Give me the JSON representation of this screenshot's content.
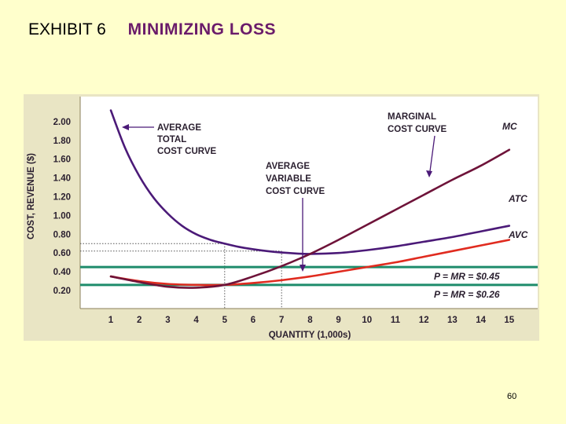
{
  "slide": {
    "exhibit_label": "EXHIBIT 6",
    "title": "MINIMIZING LOSS",
    "page_number": "60"
  },
  "colors": {
    "title": "#6a1b6a",
    "chart_background": "#e9e5c4",
    "curve_purple": "#4b1a78",
    "mc_line": "#6e1339",
    "avc_line": "#e02b1f",
    "price_lines": "#1e8c6b",
    "axis_text": "#2a1f2f"
  },
  "chart_data": {
    "type": "line",
    "xlabel": "QUANTITY (1,000s)",
    "ylabel": "COST, REVENUE ($)",
    "xlim": [
      0.5,
      15.5
    ],
    "ylim": [
      0,
      2.1
    ],
    "x_ticks": [
      "1",
      "2",
      "3",
      "4",
      "5",
      "6",
      "7",
      "8",
      "9",
      "10",
      "11",
      "12",
      "13",
      "14",
      "15"
    ],
    "y_ticks": [
      "2.00",
      "1.80",
      "1.60",
      "1.40",
      "1.20",
      "1.00",
      "0.80",
      "0.60",
      "0.40",
      "0.20"
    ],
    "grid": false,
    "series": [
      {
        "name": "ATC",
        "color": "#4b1a78",
        "x": [
          1,
          1.5,
          2,
          2.5,
          3,
          3.5,
          4,
          4.5,
          5,
          5.5,
          6,
          6.5,
          7,
          7.5,
          8,
          9,
          10,
          11,
          12,
          13,
          14,
          15
        ],
        "y": [
          2.12,
          1.72,
          1.42,
          1.19,
          1.02,
          0.89,
          0.8,
          0.74,
          0.7,
          0.665,
          0.64,
          0.62,
          0.605,
          0.595,
          0.59,
          0.6,
          0.63,
          0.67,
          0.72,
          0.77,
          0.83,
          0.89
        ]
      },
      {
        "name": "AVC",
        "color": "#e02b1f",
        "x": [
          1,
          2,
          3,
          4,
          5,
          6,
          7,
          8,
          9,
          10,
          11,
          12,
          13,
          14,
          15
        ],
        "y": [
          0.35,
          0.3,
          0.27,
          0.26,
          0.26,
          0.28,
          0.31,
          0.35,
          0.4,
          0.45,
          0.5,
          0.56,
          0.62,
          0.68,
          0.74
        ]
      },
      {
        "name": "MC",
        "color": "#6e1339",
        "x": [
          1,
          2,
          3,
          4,
          5,
          6,
          7,
          8,
          9,
          10,
          11,
          12,
          13,
          14,
          15
        ],
        "y": [
          0.35,
          0.29,
          0.24,
          0.23,
          0.26,
          0.35,
          0.46,
          0.59,
          0.74,
          0.9,
          1.06,
          1.22,
          1.38,
          1.53,
          1.7
        ]
      }
    ],
    "price_lines": [
      {
        "label": "P = MR = $0.45",
        "y": 0.45
      },
      {
        "label": "P = MR = $0.26",
        "y": 0.26
      }
    ],
    "reference_points": [
      {
        "x": 5,
        "y": 0.7
      },
      {
        "x": 7,
        "y": 0.62
      }
    ],
    "annotations": {
      "atc_callout": [
        "AVERAGE",
        "TOTAL",
        "COST CURVE"
      ],
      "avc_callout": [
        "AVERAGE",
        "VARIABLE",
        "COST CURVE"
      ],
      "mc_callout": [
        "MARGINAL",
        "COST CURVE"
      ],
      "mc_end_label": "MC",
      "atc_end_label": "ATC",
      "avc_end_label": "AVC"
    }
  }
}
